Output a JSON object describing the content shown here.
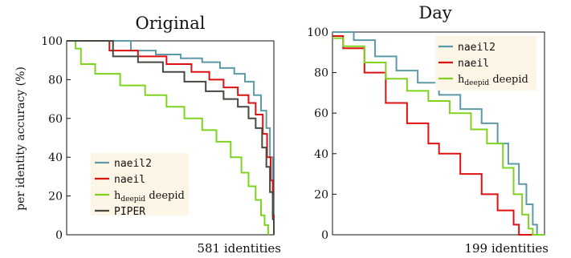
{
  "chart_data": [
    {
      "type": "line",
      "title": "Original",
      "ylabel": "per identity accuracy (%)",
      "xlabel": "581 identities",
      "ylim": [
        0,
        100
      ],
      "xlim": [
        0,
        581
      ],
      "yticks": [
        "0",
        "20",
        "40",
        "60",
        "80",
        "100"
      ],
      "legend": {
        "placement": "bottom-left",
        "background": "#fdf5e6"
      },
      "grid": false,
      "series": [
        {
          "name": "naeil2",
          "mono": true,
          "color": "#5b9aa6",
          "x": [
            0,
            100,
            180,
            250,
            320,
            380,
            430,
            470,
            500,
            525,
            545,
            560,
            570,
            578,
            581
          ],
          "y": [
            100,
            100,
            95,
            93,
            91,
            89,
            86,
            83,
            79,
            72,
            64,
            55,
            40,
            20,
            0
          ]
        },
        {
          "name": "naeil",
          "mono": true,
          "color": "#dd1111",
          "x": [
            0,
            100,
            120,
            200,
            280,
            350,
            400,
            440,
            480,
            510,
            530,
            550,
            562,
            572,
            578,
            581
          ],
          "y": [
            100,
            100,
            95,
            92,
            88,
            84,
            80,
            76,
            72,
            68,
            62,
            52,
            40,
            28,
            10,
            0
          ]
        },
        {
          "name": "h_deepid deepid",
          "name_main": "h",
          "name_sub": "deepid",
          "name_rest": " deepid",
          "mono": false,
          "color": "#7ed321",
          "x": [
            0,
            25,
            40,
            80,
            150,
            220,
            280,
            330,
            380,
            420,
            460,
            490,
            510,
            530,
            545,
            555,
            565
          ],
          "y": [
            100,
            96,
            88,
            83,
            77,
            72,
            66,
            60,
            54,
            48,
            40,
            32,
            25,
            18,
            10,
            5,
            0
          ]
        },
        {
          "name": "PIPER",
          "mono": true,
          "color": "#444a40",
          "x": [
            0,
            80,
            130,
            200,
            270,
            330,
            390,
            440,
            480,
            510,
            530,
            548,
            560,
            570,
            578,
            581
          ],
          "y": [
            100,
            100,
            92,
            89,
            84,
            79,
            74,
            70,
            66,
            60,
            55,
            45,
            35,
            22,
            8,
            0
          ]
        }
      ]
    },
    {
      "type": "line",
      "title": "Day",
      "ylabel": "",
      "xlabel": "199 identities",
      "ylim": [
        0,
        100
      ],
      "xlim": [
        0,
        199
      ],
      "yticks": [
        "0",
        "20",
        "40",
        "60",
        "80",
        "100"
      ],
      "legend": {
        "placement": "top-right",
        "background": "#fdf5e6"
      },
      "grid": false,
      "series": [
        {
          "name": "naeil2",
          "mono": true,
          "color": "#5b9aa6",
          "x": [
            0,
            8,
            20,
            40,
            60,
            80,
            100,
            120,
            140,
            155,
            165,
            175,
            182,
            188,
            192,
            199
          ],
          "y": [
            100,
            100,
            96,
            88,
            81,
            75,
            69,
            62,
            55,
            45,
            35,
            25,
            15,
            5,
            0,
            0
          ]
        },
        {
          "name": "naeil",
          "mono": true,
          "color": "#dd1111",
          "x": [
            0,
            10,
            30,
            50,
            70,
            90,
            100,
            120,
            140,
            155,
            170,
            175,
            178,
            199
          ],
          "y": [
            98,
            92,
            80,
            65,
            55,
            45,
            40,
            30,
            20,
            12,
            5,
            0,
            0,
            0
          ]
        },
        {
          "name": "h_deepid deepid",
          "name_main": "h",
          "name_sub": "deepid",
          "name_rest": " deepid",
          "mono": false,
          "color": "#7ed321",
          "x": [
            0,
            10,
            30,
            50,
            70,
            90,
            110,
            130,
            145,
            160,
            170,
            178,
            184,
            188,
            199
          ],
          "y": [
            97,
            93,
            85,
            77,
            71,
            66,
            60,
            52,
            45,
            33,
            20,
            10,
            3,
            0,
            0
          ]
        }
      ]
    }
  ]
}
